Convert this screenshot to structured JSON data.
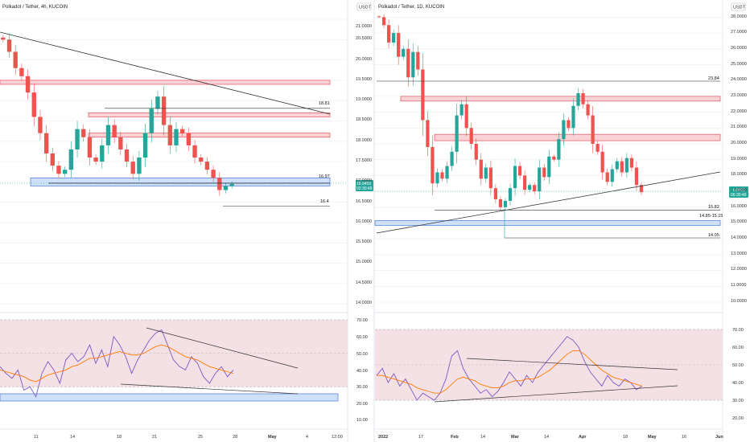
{
  "left_panel": {
    "title": "Polkadot / Tether, 4h, KUCOIN",
    "price_ylim": [
      16.0,
      21.0
    ],
    "rsi_ylim": [
      10,
      70
    ],
    "x_ticks": [
      "11",
      "14",
      "18",
      "21",
      "25",
      "28",
      "May",
      "4",
      "12:00"
    ],
    "levels": [
      {
        "label": "18.81",
        "price": 18.81
      },
      {
        "label": "16.97",
        "price": 16.97
      },
      {
        "label": "16.4",
        "price": 16.4
      }
    ]
  },
  "mid_axis": {
    "currency_badge": "USDT",
    "ticks": [
      "21.0000",
      "20.5000",
      "20.0000",
      "19.5000",
      "19.0000",
      "18.5000",
      "18.0000",
      "17.5000",
      "17.0000",
      "16.5000",
      "16.0000",
      "15.5000",
      "15.0000",
      "14.5000",
      "14.0000"
    ],
    "price_badge": [
      "16.9453",
      "02:30:49"
    ],
    "rsi_ticks": [
      "70.00",
      "60.00",
      "50.00",
      "40.00",
      "30.00",
      "20.00",
      "10.00"
    ]
  },
  "right_panel": {
    "title": "Polkadot / Tether, 1D, KUCOIN",
    "currency_badge": "USDT",
    "price_ylim": [
      10.0,
      28.0
    ],
    "rsi_ylim": [
      20,
      70
    ],
    "axis_ticks": [
      "28.0000",
      "27.0000",
      "26.0000",
      "25.0000",
      "24.0000",
      "23.0000",
      "22.0000",
      "21.0000",
      "20.0000",
      "19.0000",
      "18.0000",
      "17.0000",
      "16.0000",
      "15.0000",
      "14.0000",
      "13.0000",
      "12.0000",
      "11.0000",
      "10.0000"
    ],
    "price_badge": [
      "16.9453",
      "06:30:49"
    ],
    "rsi_ticks": [
      "70.00",
      "60.00",
      "50.00",
      "40.00",
      "30.00",
      "20.00"
    ],
    "x_ticks": [
      "2022",
      "17",
      "Feb",
      "14",
      "Mar",
      "14",
      "Apr",
      "18",
      "May",
      "16",
      "Jun"
    ],
    "levels": [
      {
        "label": "23.84",
        "price": 23.84
      },
      {
        "label": "15.82",
        "price": 15.82
      },
      {
        "label": "14.85-15.15",
        "price": 15.0
      },
      {
        "label": "14.05",
        "price": 14.05
      }
    ]
  },
  "colors": {
    "up": "#26a69a",
    "down": "#ef5350",
    "rsi": "#7e57c2",
    "rsi_ma": "#ff7a00",
    "resistance_fill": "#fbd3d6",
    "resistance_stroke": "#e0505e",
    "support_fill": "#cfe0fb",
    "support_stroke": "#4a78d8",
    "badge": "#26a69a"
  },
  "chart_data": [
    {
      "type": "candlestick",
      "title": "Polkadot / Tether, 4h, KUCOIN",
      "xlabel": "",
      "ylabel": "",
      "ylim": [
        16.0,
        21.0
      ],
      "horizontal_levels": [
        18.81,
        16.97,
        16.4
      ],
      "zones": [
        [
          19.4,
          19.5
        ],
        [
          18.6,
          18.7
        ],
        [
          18.1,
          18.2
        ],
        [
          16.9,
          17.1
        ]
      ],
      "close": [
        20.5,
        20.2,
        19.8,
        19.6,
        19.2,
        18.6,
        18.2,
        17.7,
        17.4,
        17.2,
        17.3,
        17.8,
        18.3,
        18.1,
        17.6,
        17.5,
        17.9,
        18.4,
        18.1,
        17.8,
        17.5,
        17.2,
        17.6,
        18.2,
        18.8,
        19.1,
        18.4,
        17.9,
        18.3,
        18.2,
        17.9,
        17.6,
        17.5,
        17.3,
        17.1,
        16.8,
        16.9,
        16.95
      ]
    },
    {
      "type": "candlestick",
      "title": "Polkadot / Tether, 1D, KUCOIN",
      "xlabel": "",
      "ylabel": "",
      "ylim": [
        10.0,
        28.0
      ],
      "horizontal_levels": [
        23.84,
        15.82,
        15.0,
        14.05
      ],
      "zones": [
        [
          22.7,
          23.0
        ],
        [
          20.2,
          20.6
        ],
        [
          14.85,
          15.15
        ]
      ],
      "close": [
        28.0,
        27.5,
        26.4,
        27.0,
        25.5,
        26.0,
        24.2,
        25.8,
        24.7,
        21.5,
        19.8,
        17.5,
        18.2,
        17.8,
        18.6,
        19.5,
        21.8,
        22.5,
        21.0,
        20.0,
        19.0,
        17.8,
        18.5,
        17.2,
        16.5,
        16.0,
        16.4,
        17.2,
        18.6,
        18.0,
        17.1,
        17.4,
        17.0,
        18.5,
        17.9,
        19.2,
        19.0,
        20.3,
        21.5,
        21.0,
        22.4,
        23.2,
        22.5,
        21.8,
        20.0,
        19.5,
        18.2,
        17.6,
        18.4,
        18.9,
        18.2,
        19.1,
        18.5,
        17.4,
        16.95
      ]
    }
  ]
}
